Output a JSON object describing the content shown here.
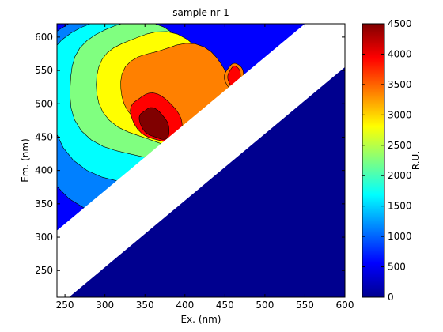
{
  "chart_data": {
    "type": "heatmap",
    "subtype": "filled-contour",
    "title": "sample nr 1",
    "xlabel": "Ex. (nm)",
    "ylabel": "Em. (nm)",
    "xlim": [
      240,
      600
    ],
    "ylim": [
      210,
      620
    ],
    "xticks": [
      250,
      300,
      350,
      400,
      450,
      500,
      550,
      600
    ],
    "yticks": [
      250,
      300,
      350,
      400,
      450,
      500,
      550,
      600
    ],
    "colorbar": {
      "label": "R.U.",
      "range": [
        0,
        4500
      ],
      "ticks": [
        0,
        500,
        1000,
        1500,
        2000,
        2500,
        3000,
        3500,
        4000,
        4500
      ],
      "colormap": "jet"
    },
    "contour_levels": [
      0,
      500,
      1000,
      1500,
      2000,
      2500,
      3000,
      3500,
      4000,
      4500
    ],
    "peaks": [
      {
        "ex": 362,
        "em": 470,
        "value": 4300
      },
      {
        "ex": 462,
        "em": 540,
        "value": 3500
      }
    ],
    "scatter_band": {
      "intercept_lower": 45,
      "intercept_upper": 70,
      "slope": 1
    },
    "below_band_value": 0,
    "background_value": 500
  },
  "colors": {
    "jet": [
      "#00008f",
      "#0000ff",
      "#0080ff",
      "#00ffff",
      "#80ff80",
      "#ffff00",
      "#ff8000",
      "#ff0000",
      "#800000"
    ],
    "band": "#ffffff"
  }
}
